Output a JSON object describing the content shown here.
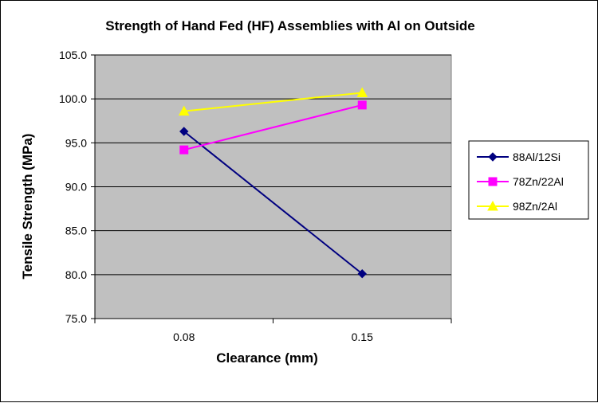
{
  "chart_data": {
    "type": "line",
    "title": "Strength of Hand Fed (HF) Assemblies  with Al on Outside",
    "xlabel": "Clearance (mm)",
    "ylabel": "Tensile Strength (MPa)",
    "categories": [
      "0.08",
      "0.15"
    ],
    "ylim": [
      75.0,
      105.0
    ],
    "yticks": [
      "75.0",
      "80.0",
      "85.0",
      "90.0",
      "95.0",
      "100.0",
      "105.0"
    ],
    "grid": true,
    "legend_position": "right",
    "plot_background": "#c0c0c0",
    "series": [
      {
        "name": "88Al/12Si",
        "values": [
          96.3,
          80.1
        ],
        "color": "#000080",
        "marker": "diamond"
      },
      {
        "name": "78Zn/22Al",
        "values": [
          94.2,
          99.3
        ],
        "color": "#ff00ff",
        "marker": "square"
      },
      {
        "name": "98Zn/2Al",
        "values": [
          98.6,
          100.7
        ],
        "color": "#ffff00",
        "marker": "triangle"
      }
    ]
  }
}
